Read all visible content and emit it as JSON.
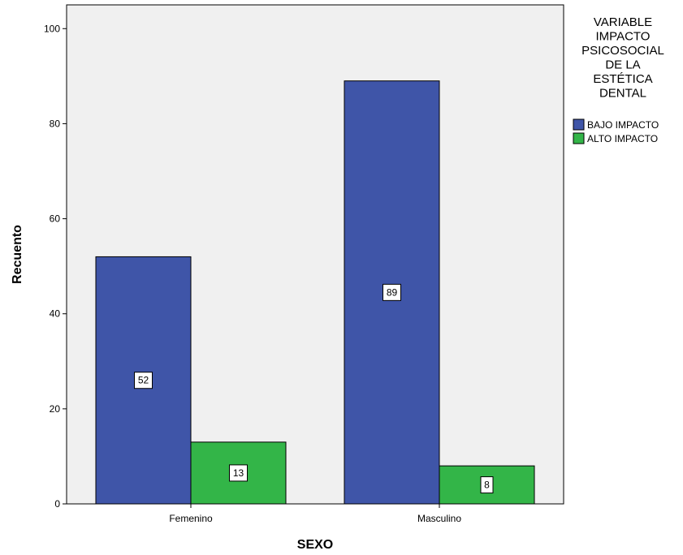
{
  "chart_data": {
    "type": "bar",
    "xlabel": "SEXO",
    "ylabel": "Recuento",
    "categories": [
      "Femenino",
      "Masculino"
    ],
    "series": [
      {
        "name": "BAJO IMPACTO",
        "color": "#3f55a8",
        "values": [
          52,
          89
        ]
      },
      {
        "name": "ALTO IMPACTO",
        "color": "#33b548",
        "values": [
          13,
          8
        ]
      }
    ],
    "ylim": [
      0,
      105
    ],
    "yticks": [
      0,
      20,
      40,
      60,
      80,
      100
    ],
    "legend": {
      "title_lines": [
        "VARIABLE",
        "IMPACTO",
        "PSICOSOCIAL",
        "DE LA",
        "ESTÉTICA",
        "DENTAL"
      ],
      "placement": "right"
    },
    "plot_background": "#f0f0f0",
    "grid": false
  }
}
